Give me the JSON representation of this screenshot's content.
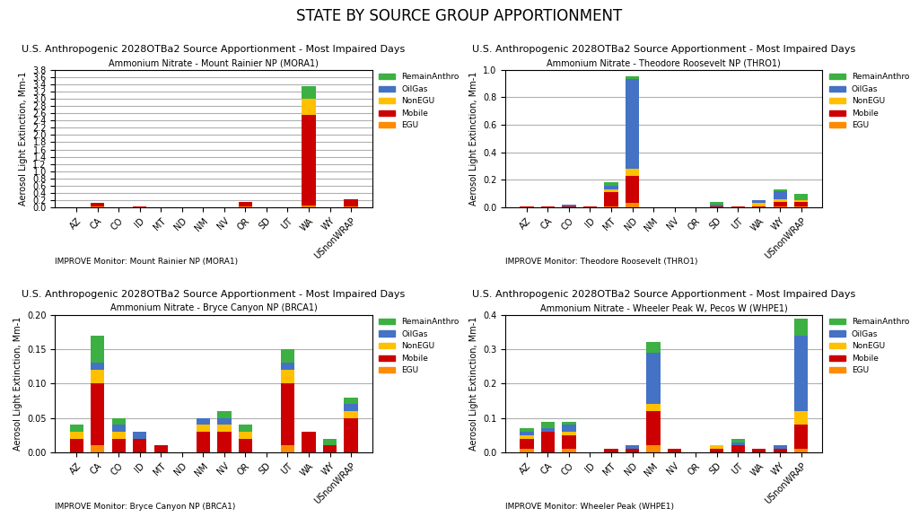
{
  "title": "STATE BY SOURCE GROUP APPORTIONMENT",
  "chart_data": [
    {
      "type": "bar",
      "stacked": true,
      "title": "U.S. Anthropogenic 2028OTBa2 Source Apportionment - Most Impaired Days",
      "subtitle": "Ammonium Nitrate - Mount Rainier NP (MORA1)",
      "ylabel": "Aerosol Light Extinction, Mm-1",
      "annotations": [
        "IMPROVE Monitor: Mount Rainier NP (MORA1)"
      ],
      "categories": [
        "AZ",
        "CA",
        "CO",
        "ID",
        "MT",
        "ND",
        "NM",
        "NV",
        "OR",
        "SD",
        "UT",
        "WA",
        "WY",
        "USnonWRAP"
      ],
      "series": [
        {
          "name": "EGU",
          "color": "#ff8c00",
          "values": [
            0.0,
            0.02,
            0.0,
            0.0,
            0.0,
            0.0,
            0.0,
            0.0,
            0.02,
            0.0,
            0.0,
            0.05,
            0.0,
            0.02
          ]
        },
        {
          "name": "Mobile",
          "color": "#cc0000",
          "values": [
            0.0,
            0.1,
            0.0,
            0.02,
            0.0,
            0.0,
            0.0,
            0.0,
            0.12,
            0.0,
            0.0,
            2.5,
            0.0,
            0.2
          ]
        },
        {
          "name": "NonEGU",
          "color": "#ffc000",
          "values": [
            0.0,
            0.0,
            0.0,
            0.0,
            0.0,
            0.0,
            0.0,
            0.0,
            0.0,
            0.0,
            0.0,
            0.45,
            0.0,
            0.0
          ]
        },
        {
          "name": "OilGas",
          "color": "#4472c4",
          "values": [
            0.0,
            0.0,
            0.0,
            0.0,
            0.0,
            0.0,
            0.0,
            0.0,
            0.0,
            0.0,
            0.0,
            0.0,
            0.0,
            0.0
          ]
        },
        {
          "name": "RemainAnthro",
          "color": "#3cb043",
          "values": [
            0.0,
            0.0,
            0.0,
            0.0,
            0.0,
            0.0,
            0.0,
            0.0,
            0.0,
            0.0,
            0.0,
            0.35,
            0.0,
            0.0
          ]
        }
      ],
      "ylim": [
        0,
        3.8
      ],
      "yticks": [
        {
          "value": 0,
          "label": "0.0"
        },
        0.2,
        0.4,
        0.6,
        0.8,
        {
          "value": 1,
          "label": "1.0"
        },
        1.2,
        1.4,
        1.6,
        1.8,
        {
          "value": 2,
          "label": "2.0"
        },
        2.2,
        2.4,
        2.6,
        2.8,
        {
          "value": 3,
          "label": "3.0"
        },
        3.2,
        3.4,
        3.6,
        3.8
      ],
      "grid": true,
      "legend": "upper left"
    },
    {
      "type": "bar",
      "stacked": true,
      "title": "U.S. Anthropogenic 2028OTBa2 Source Apportionment - Most Impaired Days",
      "subtitle": "Ammonium Nitrate - Theodore Roosevelt NP (THRO1)",
      "ylabel": "Aerosol Light Extinction, Mm-1",
      "annotations": [
        "IMPROVE Monitor: Theodore Roosevelt (THRO1)"
      ],
      "categories": [
        "AZ",
        "CA",
        "CO",
        "ID",
        "MT",
        "ND",
        "NM",
        "NV",
        "OR",
        "SD",
        "UT",
        "WA",
        "WY",
        "USnonWRAP"
      ],
      "series": [
        {
          "name": "EGU",
          "color": "#ff8c00",
          "values": [
            0.0,
            0.0,
            0.0,
            0.0,
            0.01,
            0.03,
            0.0,
            0.0,
            0.0,
            0.0,
            0.0,
            0.0,
            0.01,
            0.01
          ]
        },
        {
          "name": "Mobile",
          "color": "#cc0000",
          "values": [
            0.01,
            0.01,
            0.01,
            0.01,
            0.1,
            0.2,
            0.0,
            0.0,
            0.0,
            0.01,
            0.01,
            0.01,
            0.03,
            0.03
          ]
        },
        {
          "name": "NonEGU",
          "color": "#ffc000",
          "values": [
            0.0,
            0.0,
            0.0,
            0.0,
            0.02,
            0.05,
            0.0,
            0.0,
            0.0,
            0.0,
            0.0,
            0.02,
            0.02,
            0.01
          ]
        },
        {
          "name": "OilGas",
          "color": "#4472c4",
          "values": [
            0.0,
            0.0,
            0.01,
            0.0,
            0.03,
            0.65,
            0.0,
            0.0,
            0.0,
            0.01,
            0.0,
            0.02,
            0.06,
            0.0
          ]
        },
        {
          "name": "RemainAnthro",
          "color": "#3cb043",
          "values": [
            0.0,
            0.0,
            0.0,
            0.0,
            0.02,
            0.02,
            0.0,
            0.0,
            0.0,
            0.02,
            0.0,
            0.0,
            0.01,
            0.05
          ]
        }
      ],
      "ylim": [
        0,
        1.0
      ],
      "yticks": [
        {
          "value": 0,
          "label": "0.0"
        },
        0.2,
        0.4,
        0.6,
        0.8,
        {
          "value": 1,
          "label": "1.0"
        }
      ],
      "grid": true,
      "legend": "upper left"
    },
    {
      "type": "bar",
      "stacked": true,
      "title": "U.S. Anthropogenic 2028OTBa2 Source Apportionment - Most Impaired Days",
      "subtitle": "Ammonium Nitrate - Bryce Canyon NP (BRCA1)",
      "ylabel": "Aerosol Light Extinction, Mm-1",
      "annotations": [
        "IMPROVE Monitor: Bryce Canyon NP (BRCA1)"
      ],
      "categories": [
        "AZ",
        "CA",
        "CO",
        "ID",
        "MT",
        "ND",
        "NM",
        "NV",
        "OR",
        "SD",
        "UT",
        "WA",
        "WY",
        "USnonWRAP"
      ],
      "series": [
        {
          "name": "EGU",
          "color": "#ff8c00",
          "values": [
            0.0,
            0.01,
            0.0,
            0.0,
            0.0,
            0.0,
            0.0,
            0.0,
            0.0,
            0.0,
            0.01,
            0.0,
            0.0,
            0.0
          ]
        },
        {
          "name": "Mobile",
          "color": "#cc0000",
          "values": [
            0.02,
            0.09,
            0.02,
            0.02,
            0.01,
            0.0,
            0.03,
            0.03,
            0.02,
            0.0,
            0.09,
            0.03,
            0.01,
            0.05
          ]
        },
        {
          "name": "NonEGU",
          "color": "#ffc000",
          "values": [
            0.01,
            0.02,
            0.01,
            0.0,
            0.0,
            0.0,
            0.01,
            0.01,
            0.01,
            0.0,
            0.02,
            0.0,
            0.0,
            0.01
          ]
        },
        {
          "name": "OilGas",
          "color": "#4472c4",
          "values": [
            0.0,
            0.01,
            0.01,
            0.01,
            0.0,
            0.0,
            0.01,
            0.01,
            0.0,
            0.0,
            0.01,
            0.0,
            0.0,
            0.01
          ]
        },
        {
          "name": "RemainAnthro",
          "color": "#3cb043",
          "values": [
            0.01,
            0.04,
            0.01,
            0.0,
            0.0,
            0.0,
            0.0,
            0.01,
            0.01,
            0.0,
            0.02,
            0.0,
            0.01,
            0.01
          ]
        }
      ],
      "ylim": [
        0,
        0.2
      ],
      "yticks": [
        {
          "value": 0,
          "label": "0.00"
        },
        0.05,
        {
          "value": 0.1,
          "label": "0.10"
        },
        0.15,
        {
          "value": 0.2,
          "label": "0.20"
        }
      ],
      "grid": true,
      "legend": "upper left"
    },
    {
      "type": "bar",
      "stacked": true,
      "title": "U.S. Anthropogenic 2028OTBa2 Source Apportionment - Most Impaired Days",
      "subtitle": "Ammonium Nitrate - Wheeler Peak W, Pecos W (WHPE1)",
      "ylabel": "Aerosol Light Extinction, Mm-1",
      "annotations": [
        "IMPROVE Monitor: Wheeler Peak (WHPE1)"
      ],
      "categories": [
        "AZ",
        "CA",
        "CO",
        "ID",
        "MT",
        "ND",
        "NM",
        "NV",
        "OR",
        "SD",
        "UT",
        "WA",
        "WY",
        "USnonWRAP"
      ],
      "series": [
        {
          "name": "EGU",
          "color": "#ff8c00",
          "values": [
            0.01,
            0.0,
            0.01,
            0.0,
            0.0,
            0.0,
            0.02,
            0.0,
            0.0,
            0.0,
            0.0,
            0.0,
            0.0,
            0.01
          ]
        },
        {
          "name": "Mobile",
          "color": "#cc0000",
          "values": [
            0.03,
            0.06,
            0.04,
            0.0,
            0.01,
            0.01,
            0.1,
            0.01,
            0.0,
            0.01,
            0.02,
            0.01,
            0.01,
            0.07
          ]
        },
        {
          "name": "NonEGU",
          "color": "#ffc000",
          "values": [
            0.01,
            0.0,
            0.01,
            0.0,
            0.0,
            0.0,
            0.02,
            0.0,
            0.0,
            0.01,
            0.0,
            0.0,
            0.0,
            0.04
          ]
        },
        {
          "name": "OilGas",
          "color": "#4472c4",
          "values": [
            0.01,
            0.01,
            0.02,
            0.0,
            0.0,
            0.01,
            0.15,
            0.0,
            0.0,
            0.0,
            0.01,
            0.0,
            0.01,
            0.22
          ]
        },
        {
          "name": "RemainAnthro",
          "color": "#3cb043",
          "values": [
            0.01,
            0.02,
            0.01,
            0.0,
            0.0,
            0.0,
            0.03,
            0.0,
            0.0,
            0.0,
            0.01,
            0.0,
            0.0,
            0.05
          ]
        }
      ],
      "ylim": [
        0,
        0.4
      ],
      "yticks": [
        {
          "value": 0,
          "label": "0.0"
        },
        0.1,
        0.2,
        0.3,
        0.4
      ],
      "grid": true,
      "legend": "upper left"
    }
  ]
}
